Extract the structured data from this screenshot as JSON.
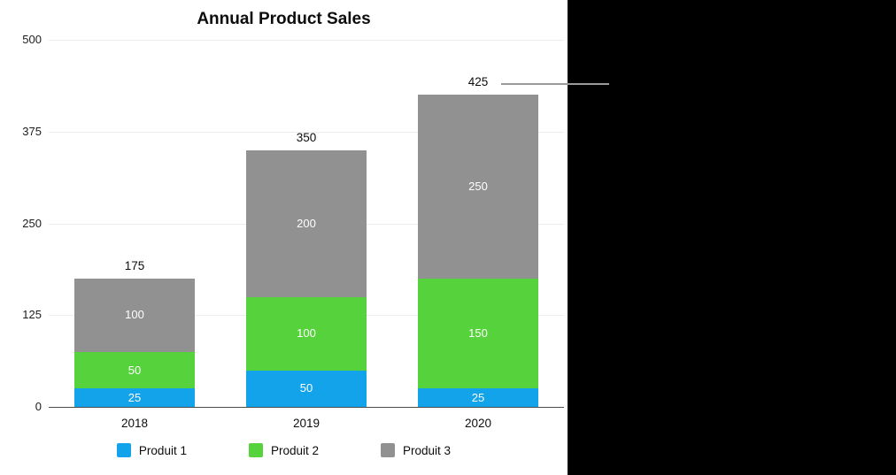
{
  "chart_data": {
    "type": "bar",
    "stacked": true,
    "title": "Annual Product Sales",
    "categories": [
      "2018",
      "2019",
      "2020"
    ],
    "series": [
      {
        "name": "Produit 1",
        "color": "#12A3EA",
        "values": [
          25,
          50,
          25
        ]
      },
      {
        "name": "Produit 2",
        "color": "#56D33C",
        "values": [
          50,
          100,
          150
        ]
      },
      {
        "name": "Produit 3",
        "color": "#919191",
        "values": [
          100,
          200,
          250
        ]
      }
    ],
    "totals": [
      175,
      350,
      425
    ],
    "y_ticks": [
      0,
      125,
      250,
      375,
      500
    ],
    "ylim": [
      0,
      500
    ],
    "grid": true,
    "legend_position": "bottom",
    "callout": {
      "category": "2020",
      "value": 425
    }
  }
}
